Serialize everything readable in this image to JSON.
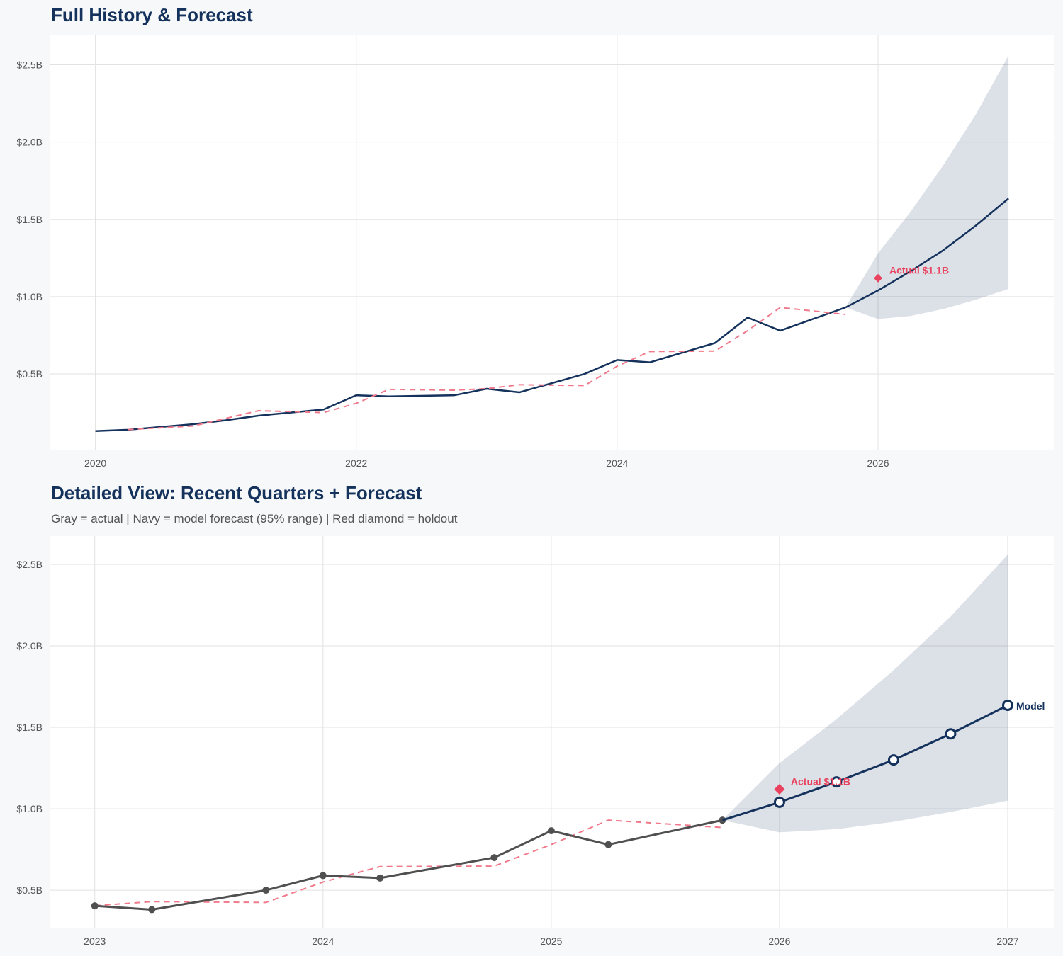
{
  "colors": {
    "background": "#f7f8fa",
    "navy": "#14325c",
    "actual_gray": "#505050",
    "backtest_pink": "#f07a8c",
    "band": "#dadee4",
    "holdout_red": "#e8425e",
    "grid": "#e2e2e2"
  },
  "chart_data": [
    {
      "type": "line",
      "title": "Full History & Forecast",
      "subtitle": "",
      "xlim": [
        "2019-08-25",
        "2027-05-08"
      ],
      "ylim": [
        0.01,
        2.69
      ],
      "grid": true,
      "x_ticks": [
        {
          "value": "2020-01-01",
          "label": "2020"
        },
        {
          "value": "2022-01-01",
          "label": "2022"
        },
        {
          "value": "2024-01-01",
          "label": "2024"
        },
        {
          "value": "2026-01-01",
          "label": "2026"
        }
      ],
      "y_ticks": [
        {
          "value": 0.5,
          "label": "$0.5B"
        },
        {
          "value": 1.0,
          "label": "$1.0B"
        },
        {
          "value": 1.5,
          "label": "$1.5B"
        },
        {
          "value": 2.0,
          "label": "$2.0B"
        },
        {
          "value": 2.5,
          "label": "$2.5B"
        }
      ],
      "series": [
        {
          "id": "actual",
          "style": "solid",
          "color": "#14325c",
          "markers": false,
          "x": [
            "2020-01-01",
            "2020-04-01",
            "2020-10-01",
            "2021-01-01",
            "2021-04-01",
            "2021-10-01",
            "2022-01-01",
            "2022-04-01",
            "2022-10-01",
            "2023-01-01",
            "2023-04-01",
            "2023-10-01",
            "2024-01-01",
            "2024-04-01",
            "2024-10-01",
            "2025-01-01",
            "2025-04-01",
            "2025-10-01"
          ],
          "y": [
            0.13,
            0.139,
            0.175,
            0.2,
            0.23,
            0.27,
            0.362,
            0.355,
            0.362,
            0.404,
            0.381,
            0.5,
            0.59,
            0.575,
            0.7,
            0.865,
            0.78,
            0.93
          ]
        },
        {
          "id": "backtest",
          "style": "dashed",
          "color": "#f07a8c",
          "markers": false,
          "x": [
            "2020-04-01",
            "2020-10-01",
            "2021-04-01",
            "2021-10-01",
            "2022-01-01",
            "2022-04-01",
            "2022-10-01",
            "2023-01-01",
            "2023-04-01",
            "2023-10-01",
            "2024-01-01",
            "2024-04-01",
            "2024-10-01",
            "2025-01-01",
            "2025-04-01",
            "2025-10-01"
          ],
          "y": [
            0.14,
            0.163,
            0.262,
            0.25,
            0.31,
            0.4,
            0.395,
            0.405,
            0.43,
            0.425,
            0.55,
            0.645,
            0.648,
            0.78,
            0.93,
            0.885
          ]
        },
        {
          "id": "forecast",
          "style": "solid",
          "color": "#14325c",
          "markers": false,
          "x": [
            "2025-10-01",
            "2026-01-01",
            "2026-04-01",
            "2026-07-01",
            "2026-10-01",
            "2027-01-01"
          ],
          "y": [
            0.93,
            1.04,
            1.165,
            1.3,
            1.46,
            1.635
          ]
        }
      ],
      "band": {
        "label": "95% range",
        "x": [
          "2025-10-01",
          "2026-01-01",
          "2026-04-01",
          "2026-07-01",
          "2026-10-01",
          "2027-01-01"
        ],
        "lower": [
          0.93,
          0.855,
          0.875,
          0.92,
          0.98,
          1.05
        ],
        "upper": [
          0.93,
          1.28,
          1.55,
          1.85,
          2.18,
          2.56
        ]
      },
      "holdout": {
        "x": "2026-01-01",
        "y": 1.12,
        "label": "Actual $1.1B"
      },
      "end_label": ""
    },
    {
      "type": "line",
      "title": "Detailed View: Recent Quarters + Forecast",
      "subtitle": "Gray = actual  |  Navy = model forecast (95% range)  |  Red diamond = holdout",
      "xlim": [
        "2022-10-20",
        "2027-03-15"
      ],
      "ylim": [
        0.27,
        2.674
      ],
      "grid": true,
      "x_ticks": [
        {
          "value": "2023-01-01",
          "label": "2023"
        },
        {
          "value": "2024-01-01",
          "label": "2024"
        },
        {
          "value": "2025-01-01",
          "label": "2025"
        },
        {
          "value": "2026-01-01",
          "label": "2026"
        },
        {
          "value": "2027-01-01",
          "label": "2027"
        }
      ],
      "y_ticks": [
        {
          "value": 0.5,
          "label": "$0.5B"
        },
        {
          "value": 1.0,
          "label": "$1.0B"
        },
        {
          "value": 1.5,
          "label": "$1.5B"
        },
        {
          "value": 2.0,
          "label": "$2.0B"
        },
        {
          "value": 2.5,
          "label": "$2.5B"
        }
      ],
      "series": [
        {
          "id": "backtest",
          "style": "dashed",
          "color": "#f07a8c",
          "markers": false,
          "x": [
            "2023-01-01",
            "2023-04-01",
            "2023-10-01",
            "2024-01-01",
            "2024-04-01",
            "2024-10-01",
            "2025-01-01",
            "2025-04-01",
            "2025-10-01"
          ],
          "y": [
            0.405,
            0.43,
            0.425,
            0.55,
            0.645,
            0.648,
            0.78,
            0.93,
            0.885
          ]
        },
        {
          "id": "actual",
          "style": "solid",
          "color": "#505050",
          "markers": "filled",
          "x": [
            "2023-01-01",
            "2023-04-01",
            "2023-10-01",
            "2024-01-01",
            "2024-04-01",
            "2024-10-01",
            "2025-01-01",
            "2025-04-01",
            "2025-10-01"
          ],
          "y": [
            0.404,
            0.381,
            0.5,
            0.59,
            0.575,
            0.7,
            0.865,
            0.78,
            0.93
          ]
        },
        {
          "id": "forecast",
          "style": "solid",
          "color": "#14325c",
          "markers": "hollow",
          "x": [
            "2025-10-01",
            "2026-01-01",
            "2026-04-01",
            "2026-07-01",
            "2026-10-01",
            "2027-01-01"
          ],
          "y": [
            0.93,
            1.04,
            1.165,
            1.3,
            1.46,
            1.635
          ]
        }
      ],
      "band": {
        "label": "95% range",
        "x": [
          "2025-10-01",
          "2026-01-01",
          "2026-04-01",
          "2026-07-01",
          "2026-10-01",
          "2027-01-01"
        ],
        "lower": [
          0.93,
          0.855,
          0.875,
          0.92,
          0.98,
          1.05
        ],
        "upper": [
          0.93,
          1.28,
          1.55,
          1.85,
          2.18,
          2.56
        ]
      },
      "holdout": {
        "x": "2026-01-01",
        "y": 1.12,
        "label": "Actual $1.1B"
      },
      "end_label": "Model"
    }
  ]
}
